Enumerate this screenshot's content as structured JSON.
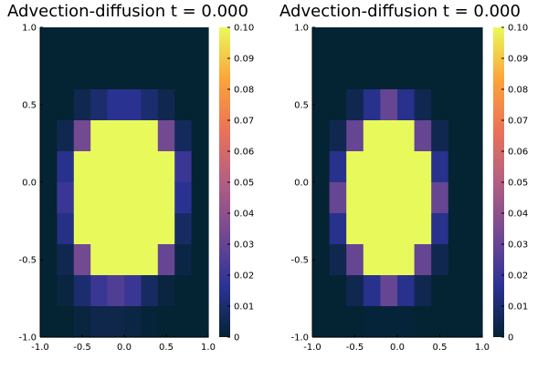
{
  "colormap": {
    "name": "thermal",
    "stops": [
      "#042333",
      "#2c3395",
      "#744992",
      "#b15f82",
      "#eb7258",
      "#fba43a",
      "#e8fa5b"
    ]
  },
  "chart_data": [
    {
      "type": "heatmap",
      "title": "Advection-diffusion t = 0.000",
      "xlim": [
        -1.0,
        1.0
      ],
      "ylim": [
        -1.0,
        1.0
      ],
      "x_ticks": [
        "-1.0",
        "-0.5",
        "0.0",
        "0.5",
        "1.0"
      ],
      "y_ticks": [
        "-1.0",
        "-0.5",
        "0.0",
        "0.5",
        "1.0"
      ],
      "color_range": [
        0,
        0.1
      ],
      "colorbar_ticks": [
        "0",
        "0.01",
        "0.02",
        "0.03",
        "0.04",
        "0.05",
        "0.06",
        "0.07",
        "0.08",
        "0.09",
        "0.10"
      ],
      "grid": false,
      "rows_top_to_bottom": [
        [
          0.0,
          0.0,
          0.0,
          0.0,
          0.0,
          0.0,
          0.0,
          0.0,
          0.0,
          0.0
        ],
        [
          0.0,
          0.0,
          0.0,
          0.0,
          0.0,
          0.0,
          0.0,
          0.0,
          0.0,
          0.0
        ],
        [
          0.0,
          0.0,
          0.005,
          0.01,
          0.016,
          0.016,
          0.01,
          0.005,
          0.0,
          0.0
        ],
        [
          0.0,
          0.005,
          0.033,
          0.1,
          0.1,
          0.1,
          0.1,
          0.033,
          0.007,
          0.0
        ],
        [
          0.0,
          0.015,
          0.1,
          0.1,
          0.1,
          0.1,
          0.1,
          0.1,
          0.02,
          0.0
        ],
        [
          0.0,
          0.02,
          0.1,
          0.1,
          0.1,
          0.1,
          0.1,
          0.1,
          0.016,
          0.0
        ],
        [
          0.0,
          0.014,
          0.1,
          0.1,
          0.1,
          0.1,
          0.1,
          0.1,
          0.008,
          0.0
        ],
        [
          0.0,
          0.005,
          0.033,
          0.1,
          0.1,
          0.1,
          0.1,
          0.03,
          0.003,
          0.0
        ],
        [
          0.0,
          0.002,
          0.01,
          0.02,
          0.025,
          0.02,
          0.008,
          0.002,
          0.0,
          0.0
        ],
        [
          0.0,
          0.0,
          0.002,
          0.004,
          0.004,
          0.003,
          0.001,
          0.0,
          0.0,
          0.0
        ]
      ]
    },
    {
      "type": "heatmap",
      "title": "Advection-diffusion t = 0.000",
      "xlim": [
        -1.0,
        1.0
      ],
      "ylim": [
        -1.0,
        1.0
      ],
      "x_ticks": [
        "-1.0",
        "-0.5",
        "0.0",
        "0.5",
        "1.0"
      ],
      "y_ticks": [
        "-1.0",
        "-0.5",
        "0.0",
        "0.5",
        "1.0"
      ],
      "color_range": [
        0,
        0.1
      ],
      "colorbar_ticks": [
        "0",
        "0.01",
        "0.02",
        "0.03",
        "0.04",
        "0.05",
        "0.06",
        "0.07",
        "0.08",
        "0.09",
        "0.10"
      ],
      "grid": false,
      "rows_top_to_bottom": [
        [
          0.0,
          0.0,
          0.0,
          0.0,
          0.0,
          0.0,
          0.0,
          0.0,
          0.0,
          0.0
        ],
        [
          0.0,
          0.0,
          0.0,
          0.0,
          0.0,
          0.0,
          0.0,
          0.0,
          0.0,
          0.0
        ],
        [
          0.0,
          0.0,
          0.005,
          0.015,
          0.03,
          0.015,
          0.005,
          0.0,
          0.0,
          0.0
        ],
        [
          0.0,
          0.005,
          0.03,
          0.1,
          0.1,
          0.1,
          0.03,
          0.005,
          0.0,
          0.0
        ],
        [
          0.0,
          0.015,
          0.1,
          0.1,
          0.1,
          0.1,
          0.1,
          0.015,
          0.0,
          0.0
        ],
        [
          0.0,
          0.03,
          0.1,
          0.1,
          0.1,
          0.1,
          0.1,
          0.03,
          0.0,
          0.0
        ],
        [
          0.0,
          0.015,
          0.1,
          0.1,
          0.1,
          0.1,
          0.1,
          0.015,
          0.0,
          0.0
        ],
        [
          0.0,
          0.005,
          0.03,
          0.1,
          0.1,
          0.1,
          0.03,
          0.005,
          0.0,
          0.0
        ],
        [
          0.0,
          0.0,
          0.005,
          0.015,
          0.03,
          0.015,
          0.005,
          0.0,
          0.0,
          0.0
        ],
        [
          0.0,
          0.0,
          0.0,
          0.001,
          0.001,
          0.001,
          0.0,
          0.0,
          0.0,
          0.0
        ]
      ]
    }
  ]
}
